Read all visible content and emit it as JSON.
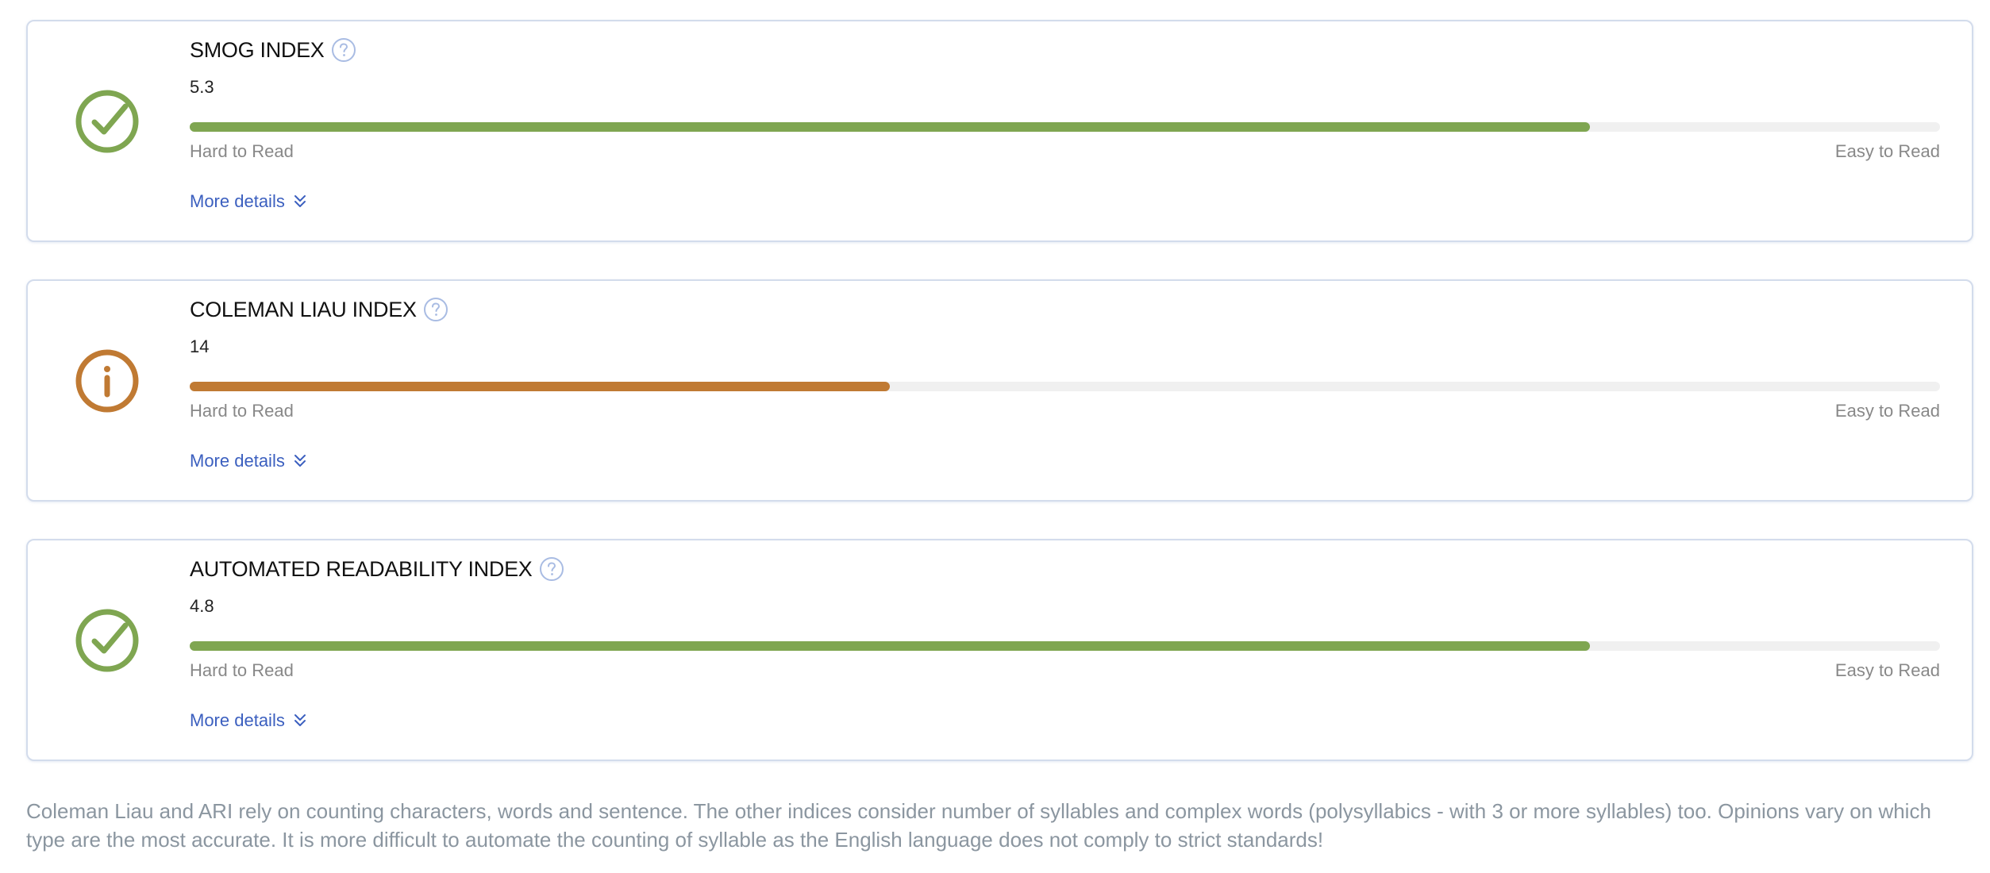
{
  "colors": {
    "good": "#7fa651",
    "warning": "#c07a33",
    "link": "#3b5fbf",
    "help": "#a9bce3"
  },
  "cards": [
    {
      "title": "SMOG INDEX",
      "score": "5.3",
      "status": "good",
      "status_icon": "check-circle-icon",
      "progress": 0.8,
      "scale_left": "Hard to Read",
      "scale_right": "Easy to Read",
      "details_label": "More details"
    },
    {
      "title": "COLEMAN LIAU INDEX",
      "score": "14",
      "status": "warning",
      "status_icon": "info-circle-icon",
      "progress": 0.4,
      "scale_left": "Hard to Read",
      "scale_right": "Easy to Read",
      "details_label": "More details"
    },
    {
      "title": "AUTOMATED READABILITY INDEX",
      "score": "4.8",
      "status": "good",
      "status_icon": "check-circle-icon",
      "progress": 0.8,
      "scale_left": "Hard to Read",
      "scale_right": "Easy to Read",
      "details_label": "More details"
    }
  ],
  "footnote": "Coleman Liau and ARI rely on counting characters, words and sentence. The other indices consider number of syllables and complex words (polysyllabics - with 3 or more syllables) too. Opinions vary on which type are the most accurate. It is more difficult to automate the counting of syllable as the English language does not comply to strict standards!"
}
